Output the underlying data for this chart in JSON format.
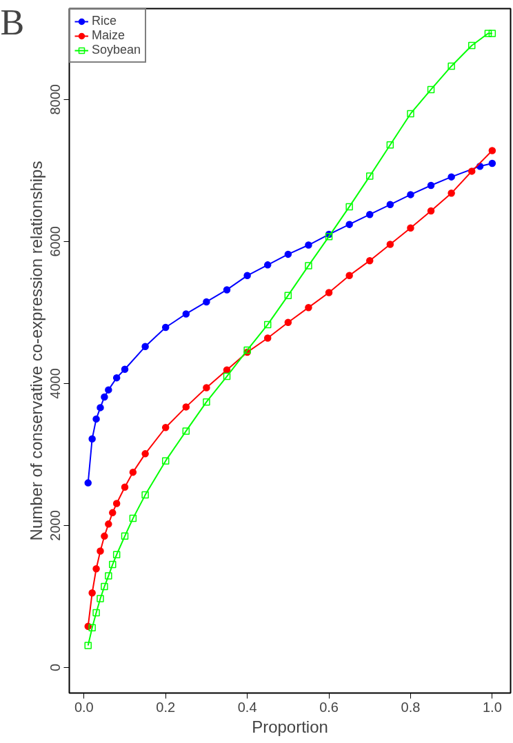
{
  "chart_data": {
    "type": "line",
    "xlabel": "Proportion",
    "ylabel": "Number of conservative co-expression relationships",
    "annotations": [
      "B"
    ],
    "xlim": [
      -0.036,
      1.045
    ],
    "ylim": [
      -360,
      9280
    ],
    "xticks": [
      {
        "value": 0,
        "label": "0.0"
      },
      {
        "value": 0.2,
        "label": "0.2"
      },
      {
        "value": 0.4,
        "label": "0.4"
      },
      {
        "value": 0.6,
        "label": "0.6"
      },
      {
        "value": 0.8,
        "label": "0.8"
      },
      {
        "value": 1,
        "label": "1.0"
      }
    ],
    "yticks": [
      0,
      2000,
      4000,
      6000,
      8000
    ],
    "grid": false,
    "legend": "top left",
    "series": [
      {
        "name": "Rice",
        "color": "#0000ff",
        "marker": "circle",
        "x": [
          0.01,
          0.02,
          0.03,
          0.04,
          0.05,
          0.06,
          0.08,
          0.1,
          0.15,
          0.2,
          0.25,
          0.3,
          0.35,
          0.4,
          0.45,
          0.5,
          0.55,
          0.6,
          0.65,
          0.7,
          0.75,
          0.8,
          0.85,
          0.9,
          0.97,
          1.0
        ],
        "values": [
          2600,
          3220,
          3500,
          3660,
          3810,
          3910,
          4080,
          4200,
          4520,
          4790,
          4980,
          5150,
          5320,
          5520,
          5670,
          5820,
          5950,
          6100,
          6240,
          6380,
          6520,
          6660,
          6790,
          6910,
          7060,
          7100
        ]
      },
      {
        "name": "Maize",
        "color": "#ff0000",
        "marker": "circle",
        "x": [
          0.01,
          0.02,
          0.03,
          0.04,
          0.05,
          0.06,
          0.07,
          0.08,
          0.1,
          0.12,
          0.15,
          0.2,
          0.25,
          0.3,
          0.35,
          0.4,
          0.45,
          0.5,
          0.55,
          0.6,
          0.65,
          0.7,
          0.75,
          0.8,
          0.85,
          0.9,
          0.95,
          1.0
        ],
        "values": [
          580,
          1050,
          1390,
          1640,
          1850,
          2020,
          2180,
          2310,
          2540,
          2750,
          3010,
          3380,
          3670,
          3940,
          4190,
          4440,
          4640,
          4860,
          5070,
          5280,
          5520,
          5730,
          5960,
          6190,
          6430,
          6680,
          6990,
          7280
        ]
      },
      {
        "name": "Soybean",
        "color": "#00ff00",
        "marker": "square",
        "x": [
          0.01,
          0.02,
          0.03,
          0.04,
          0.05,
          0.06,
          0.07,
          0.08,
          0.1,
          0.12,
          0.15,
          0.2,
          0.25,
          0.3,
          0.35,
          0.4,
          0.45,
          0.5,
          0.55,
          0.6,
          0.65,
          0.7,
          0.75,
          0.8,
          0.85,
          0.9,
          0.95,
          0.99,
          1.0
        ],
        "values": [
          310,
          560,
          770,
          970,
          1140,
          1290,
          1450,
          1590,
          1850,
          2100,
          2430,
          2910,
          3330,
          3740,
          4100,
          4470,
          4830,
          5240,
          5660,
          6070,
          6490,
          6920,
          7360,
          7800,
          8140,
          8470,
          8760,
          8930,
          8930
        ]
      }
    ]
  }
}
